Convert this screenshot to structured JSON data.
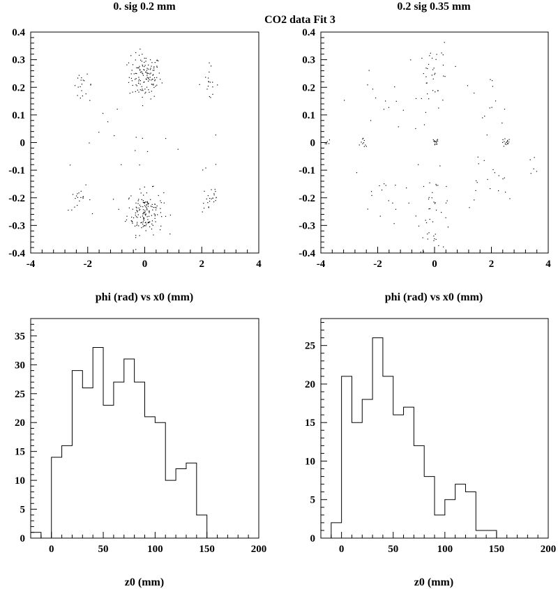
{
  "page_title": "CO2 data Fit 3",
  "chart_data": [
    {
      "id": "scatter-left",
      "type": "scatter",
      "title": "0.  sig  0.2 mm",
      "xlabel": "phi (rad) vs x0 (mm)",
      "ylabel": "",
      "xlim": [
        -4,
        4
      ],
      "ylim": [
        -0.4,
        0.4
      ],
      "xticks": [
        -4,
        -2,
        0,
        2,
        4
      ],
      "yticks": [
        -0.4,
        -0.3,
        -0.2,
        -0.1,
        0,
        0.1,
        0.2,
        0.3,
        0.4
      ],
      "ytick_labels": [
        "-0.4",
        "-0.3",
        "-0.2",
        "-0.1",
        "0",
        "0.1",
        "0.2",
        "0.3",
        "0.4"
      ],
      "clusters": [
        {
          "cx": 0.0,
          "cy": 0.24,
          "sx": 0.28,
          "sy": 0.04,
          "n": 130
        },
        {
          "cx": 0.0,
          "cy": -0.25,
          "sx": 0.32,
          "sy": 0.04,
          "n": 150
        },
        {
          "cx": -2.2,
          "cy": 0.21,
          "sx": 0.18,
          "sy": 0.018,
          "n": 18
        },
        {
          "cx": 2.2,
          "cy": 0.22,
          "sx": 0.18,
          "sy": 0.03,
          "n": 16
        },
        {
          "cx": -2.3,
          "cy": -0.21,
          "sx": 0.2,
          "sy": 0.018,
          "n": 18
        },
        {
          "cx": 2.3,
          "cy": -0.2,
          "sx": 0.16,
          "sy": 0.03,
          "n": 22
        },
        {
          "cx": 0.0,
          "cy": 0.0,
          "sx": 2.2,
          "sy": 0.15,
          "n": 30
        }
      ]
    },
    {
      "id": "scatter-right",
      "type": "scatter",
      "title": "0.2  sig  0.35 mm",
      "xlabel": "phi (rad) vs x0 (mm)",
      "ylabel": "",
      "xlim": [
        -4,
        4
      ],
      "ylim": [
        -0.4,
        0.4
      ],
      "xticks": [
        -4,
        -2,
        0,
        2,
        4
      ],
      "yticks": [
        -0.4,
        -0.3,
        -0.2,
        -0.1,
        0,
        0.1,
        0.2,
        0.3,
        0.4
      ],
      "ytick_labels": [
        "-0.4",
        "-0.3",
        "-0.2",
        "-0.1",
        "0",
        "0.1",
        "0.2",
        "0.3",
        "0.4"
      ],
      "clusters": [
        {
          "cx": 0.0,
          "cy": 0.0,
          "sx": 0.06,
          "sy": 0.008,
          "n": 14
        },
        {
          "cx": 2.5,
          "cy": 0.0,
          "sx": 0.08,
          "sy": 0.008,
          "n": 16
        },
        {
          "cx": -2.5,
          "cy": 0.0,
          "sx": 0.06,
          "sy": 0.008,
          "n": 10
        },
        {
          "cx": -3.8,
          "cy": 0.0,
          "sx": 0.06,
          "sy": 0.008,
          "n": 6
        },
        {
          "cx": 0.0,
          "cy": 0.23,
          "sx": 0.3,
          "sy": 0.07,
          "n": 40
        },
        {
          "cx": 0.0,
          "cy": -0.25,
          "sx": 0.3,
          "sy": 0.07,
          "n": 40
        },
        {
          "cx": 1.8,
          "cy": 0.15,
          "sx": 0.5,
          "sy": 0.05,
          "n": 14
        },
        {
          "cx": -1.8,
          "cy": 0.15,
          "sx": 0.6,
          "sy": 0.05,
          "n": 14
        },
        {
          "cx": 1.8,
          "cy": -0.15,
          "sx": 0.5,
          "sy": 0.05,
          "n": 18
        },
        {
          "cx": -1.8,
          "cy": -0.18,
          "sx": 0.6,
          "sy": 0.05,
          "n": 18
        },
        {
          "cx": 3.5,
          "cy": -0.08,
          "sx": 0.15,
          "sy": 0.02,
          "n": 4
        }
      ]
    },
    {
      "id": "hist-left",
      "type": "bar",
      "title": "",
      "xlabel": "z0 (mm)",
      "ylabel": "",
      "xlim": [
        -20,
        200
      ],
      "ylim": [
        0,
        38
      ],
      "xticks": [
        0,
        50,
        100,
        150,
        200
      ],
      "yticks": [
        0,
        5,
        10,
        15,
        20,
        25,
        30,
        35
      ],
      "bin_edges": [
        -20,
        -10,
        0,
        10,
        20,
        30,
        40,
        50,
        60,
        70,
        80,
        90,
        100,
        110,
        120,
        130,
        140,
        150,
        160,
        170,
        180,
        190,
        200
      ],
      "values": [
        1,
        0,
        14,
        16,
        29,
        26,
        33,
        23,
        27,
        31,
        27,
        21,
        20,
        10,
        12,
        13,
        4,
        0,
        0,
        0,
        0,
        0
      ]
    },
    {
      "id": "hist-right",
      "type": "bar",
      "title": "",
      "xlabel": "z0 (mm)",
      "ylabel": "",
      "xlim": [
        -20,
        200
      ],
      "ylim": [
        0,
        28.5
      ],
      "xticks": [
        0,
        50,
        100,
        150,
        200
      ],
      "yticks": [
        0,
        5,
        10,
        15,
        20,
        25
      ],
      "bin_edges": [
        -20,
        -10,
        0,
        10,
        20,
        30,
        40,
        50,
        60,
        70,
        80,
        90,
        100,
        110,
        120,
        130,
        140,
        150,
        160,
        170,
        180,
        190,
        200
      ],
      "values": [
        0,
        2,
        21,
        15,
        18,
        26,
        21,
        16,
        17,
        12,
        8,
        3,
        5,
        7,
        6,
        1,
        1,
        0,
        0,
        0,
        0,
        0
      ]
    }
  ]
}
